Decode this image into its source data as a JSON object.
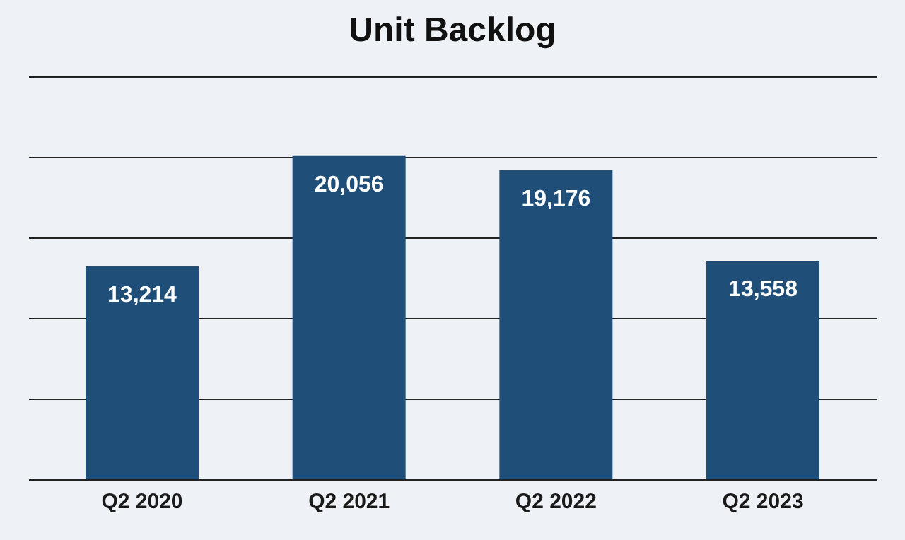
{
  "chart_data": {
    "type": "bar",
    "title": "Unit Backlog",
    "categories": [
      "Q2 2020",
      "Q2 2021",
      "Q2 2022",
      "Q2 2023"
    ],
    "values": [
      13214,
      20056,
      19176,
      13558
    ],
    "value_labels": [
      "13,214",
      "20,056",
      "19,176",
      "13,558"
    ],
    "color": "#1f4e79",
    "ylim": [
      0,
      25000
    ],
    "yticks": [
      {
        "value": 0,
        "label": null
      },
      {
        "value": 5000,
        "label": null
      },
      {
        "value": 10000,
        "label": null
      },
      {
        "value": 15000,
        "label": null
      },
      {
        "value": 20000,
        "label": null
      },
      {
        "value": 25000,
        "label": null
      }
    ],
    "grid": "y",
    "tick_labels": "x"
  }
}
